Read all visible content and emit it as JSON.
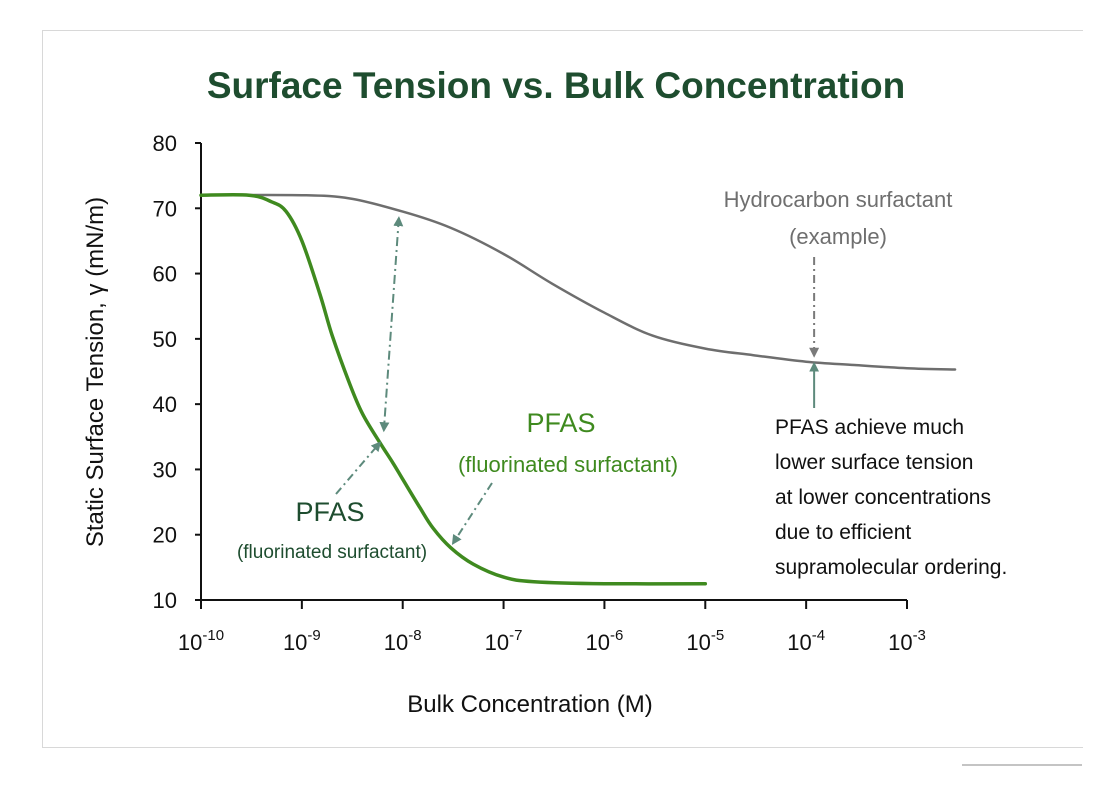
{
  "chart_data": {
    "type": "line",
    "title": "Surface Tension vs. Bulk Concentration",
    "xlabel": "Bulk Concentration (M)",
    "ylabel": "Static Surface Tension, γ (mN/m)",
    "x_scale": "log",
    "xlim": [
      1e-10,
      0.001
    ],
    "ylim": [
      10,
      80
    ],
    "x_ticks": [
      {
        "value": 1e-10,
        "base": "10",
        "exp": "-10"
      },
      {
        "value": 1e-09,
        "base": "10",
        "exp": "-9"
      },
      {
        "value": 1e-08,
        "base": "10",
        "exp": "-8"
      },
      {
        "value": 1e-07,
        "base": "10",
        "exp": "-7"
      },
      {
        "value": 1e-06,
        "base": "10",
        "exp": "-6"
      },
      {
        "value": 1e-05,
        "base": "10",
        "exp": "-5"
      },
      {
        "value": 0.0001,
        "base": "10",
        "exp": "-4"
      },
      {
        "value": 0.001,
        "base": "10",
        "exp": "-3"
      }
    ],
    "y_ticks": [
      "10",
      "20",
      "30",
      "40",
      "50",
      "60",
      "70",
      "80"
    ],
    "grid": false,
    "series": [
      {
        "name": "PFAS (fluorinated surfactant)",
        "color": "#3f8a1f",
        "x": [
          1e-10,
          3e-10,
          5e-10,
          7e-10,
          1e-09,
          1.5e-09,
          2e-09,
          3e-09,
          4e-09,
          6e-09,
          8e-09,
          1e-08,
          1.5e-08,
          2e-08,
          3e-08,
          5e-08,
          1e-07,
          2e-07,
          1e-06,
          1e-05
        ],
        "y": [
          72,
          72,
          71,
          69.5,
          65,
          57,
          50.5,
          43,
          38.5,
          34,
          31,
          28.5,
          24,
          21,
          18,
          15.5,
          13.5,
          12.8,
          12.5,
          12.5
        ]
      },
      {
        "name": "Hydrocarbon surfactant (example)",
        "color": "#6e6e6e",
        "x": [
          1e-10,
          1e-09,
          3e-09,
          1e-08,
          3e-08,
          1e-07,
          3e-07,
          1e-06,
          3e-06,
          1e-05,
          3e-05,
          0.0001,
          0.0003,
          0.001,
          0.003
        ],
        "y": [
          72,
          72,
          71.5,
          69.5,
          67,
          63,
          58.5,
          54,
          50.5,
          48.5,
          47.5,
          46.5,
          46,
          45.5,
          45.3
        ]
      }
    ],
    "annotations": {
      "hydro_label": [
        "Hydrocarbon surfactant",
        "(example)"
      ],
      "pfas_label_right": {
        "main": "PFAS",
        "sub": "(fluorinated surfactant)"
      },
      "pfas_label_left": {
        "main": "PFAS",
        "sub": "(fluorinated surfactant)"
      },
      "note": [
        "PFAS achieve much",
        "lower surface tension",
        "at lower concentrations",
        "due to efficient",
        "supramolecular ordering."
      ]
    }
  }
}
